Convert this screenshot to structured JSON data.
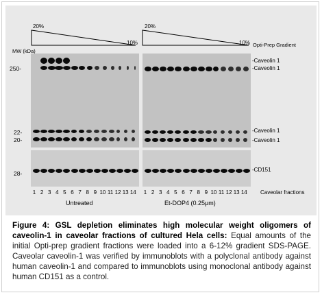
{
  "gradient": {
    "top_pct": "20%",
    "bottom_pct": "10%",
    "label": "Opti-Prep Gradient"
  },
  "mw_label": "MW (kDa)",
  "markers": [
    "250-",
    "22-",
    "20-",
    "28-"
  ],
  "band_labels": {
    "cav_hmw_1": "-Caveolin 1",
    "cav_hmw_2": "-Caveolin 1",
    "cav_low_1": "-Caveolin 1",
    "cav_low_2": "-Caveolin 1",
    "cd151": "-CD151"
  },
  "lanes": [
    "1",
    "2",
    "3",
    "4",
    "5",
    "6",
    "7",
    "8",
    "9",
    "10",
    "11",
    "12",
    "13",
    "14"
  ],
  "lanes_label": "Caveolar fractions",
  "conditions": {
    "left": "Untreated",
    "right": "Et-DOP4 (0.25μm)"
  },
  "caption": {
    "bold": "Figure 4: GSL depletion eliminates high molecular weight oligomers of caveolin-1 in caveolar fractions of cultured Hela cells:",
    "text": " Equal amounts of the initial Opti-prep gradient fractions were loaded into a 6-12% gradient SDS-PAGE. Caveolar caveolin-1 was verified by immunoblots with a polyclonal antibody against human caveolin-1 and compared to immunoblots using monoclonal antibody against human CD151 as a control."
  }
}
